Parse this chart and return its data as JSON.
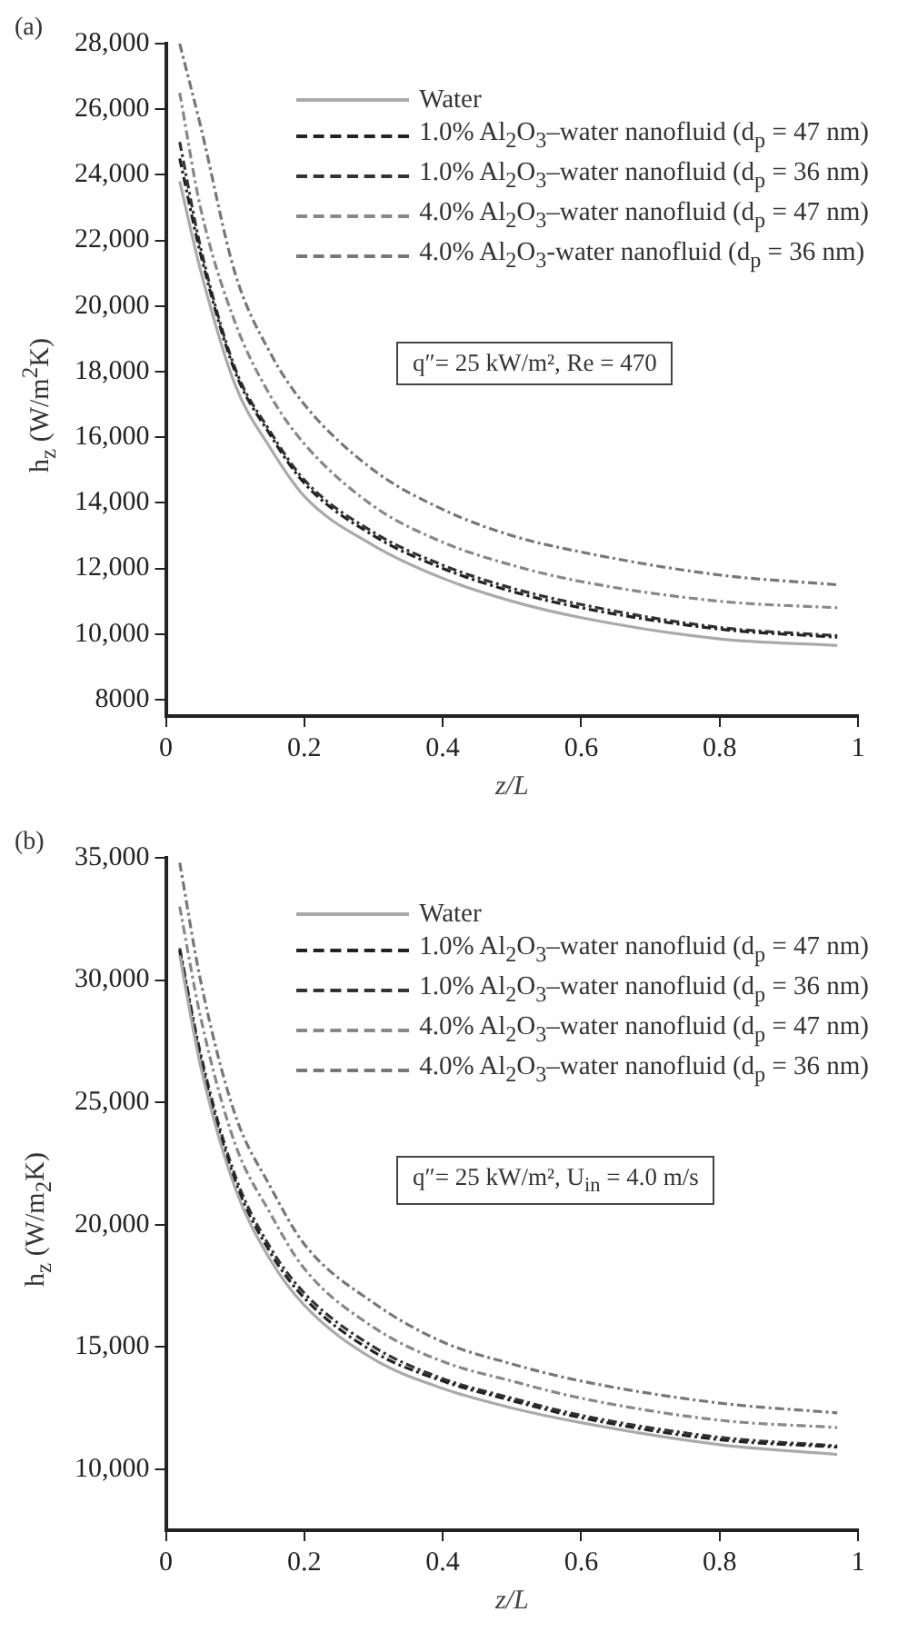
{
  "chart_data": [
    {
      "type": "line",
      "title": "(a)",
      "xlabel": "z/L",
      "ylabel": "h$_{z}$ (W/m$^{2}$K)",
      "x": [
        0.02,
        0.05,
        0.1,
        0.15,
        0.2,
        0.3,
        0.4,
        0.5,
        0.6,
        0.8,
        0.97
      ],
      "xlim": [
        0,
        1
      ],
      "xticks": [
        0,
        0.2,
        0.4,
        0.6,
        0.8,
        1
      ],
      "ylim": [
        7500,
        28000
      ],
      "yticks": [
        8000,
        {
          "value": 10000,
          "label": "10,000"
        },
        {
          "value": 12000,
          "label": "12,000"
        },
        {
          "value": 14000,
          "label": "14,000"
        },
        {
          "value": 16000,
          "label": "16,000"
        },
        {
          "value": 18000,
          "label": "18,000"
        },
        {
          "value": 20000,
          "label": "20,000"
        },
        {
          "value": 22000,
          "label": "22,000"
        },
        {
          "value": 24000,
          "label": "24,000"
        },
        {
          "value": 26000,
          "label": "26,000"
        },
        {
          "value": 28000,
          "label": "28,000"
        }
      ],
      "grid": false,
      "legend": "top right",
      "marker": "none",
      "annotations": [
        "q″= 25 kW/m², Re = 470"
      ],
      "series": [
        {
          "name": "Water",
          "color": "#aaaaaa",
          "line_style": "solid",
          "values": [
            23800,
            21100,
            17600,
            15700,
            14200,
            12700,
            11700,
            11000,
            10500,
            9850,
            9650
          ]
        },
        {
          "name": "1.0% Al$_{2}$O$_{3}$–water nanofluid (d$_{p}$ = 47 nm)",
          "color": "#222222",
          "line_style": "dashed",
          "values": [
            24500,
            21600,
            18000,
            16100,
            14600,
            13000,
            12000,
            11300,
            10800,
            10150,
            9900
          ]
        },
        {
          "name": "1.0% Al$_{2}$O$_{3}$–water nanofluid (d$_{p}$ = 36 nm)",
          "color": "#333333",
          "line_style": "dashed",
          "values": [
            25000,
            21800,
            18100,
            16200,
            14700,
            13100,
            12100,
            11400,
            10900,
            10200,
            9950
          ]
        },
        {
          "name": "4.0% Al$_{2}$O$_{3}$–water nanofluid (d$_{p}$ = 47 nm)",
          "color": "#888888",
          "line_style": "dashed",
          "values": [
            26500,
            23000,
            19500,
            17300,
            15800,
            13900,
            12800,
            12100,
            11600,
            11000,
            10800
          ]
        },
        {
          "name": "4.0% Al$_{2}$O$_{3}$-water nanofluid (d$_{p}$ = 36 nm)",
          "color": "#777777",
          "line_style": "dashed",
          "values": [
            28000,
            25500,
            21000,
            18600,
            17000,
            15000,
            13800,
            13000,
            12500,
            11800,
            11500
          ]
        }
      ]
    },
    {
      "type": "line",
      "title": "(b)",
      "xlabel": "z/L",
      "ylabel": "h$_{z}$ (W/m$_{2}$K)",
      "x": [
        0.02,
        0.05,
        0.1,
        0.15,
        0.2,
        0.3,
        0.4,
        0.5,
        0.6,
        0.8,
        0.97
      ],
      "xlim": [
        0,
        1
      ],
      "xticks": [
        0,
        0.2,
        0.4,
        0.6,
        0.8,
        1
      ],
      "ylim": [
        7500,
        35000
      ],
      "yticks": [
        {
          "value": 10000,
          "label": "10,000"
        },
        {
          "value": 15000,
          "label": "15,000"
        },
        {
          "value": 20000,
          "label": "20,000"
        },
        {
          "value": 25000,
          "label": "25,000"
        },
        {
          "value": 30000,
          "label": "30,000"
        },
        {
          "value": 35000,
          "label": "35,000"
        }
      ],
      "grid": false,
      "legend": "top right",
      "marker": "none",
      "annotations": [
        "q″= 25 kW/m², U$_{in}$ = 4.0 m/s"
      ],
      "series": [
        {
          "name": "Water",
          "color": "#aaaaaa",
          "line_style": "solid",
          "values": [
            31000,
            26500,
            21500,
            18600,
            16700,
            14500,
            13300,
            12500,
            11900,
            11000,
            10600
          ]
        },
        {
          "name": "1.0% Al$_{2}$O$_{3}$–water nanofluid (d$_{p}$ = 47 nm)",
          "color": "#222222",
          "line_style": "dashed",
          "values": [
            31200,
            26800,
            21800,
            18900,
            17000,
            14800,
            13600,
            12800,
            12100,
            11200,
            10900
          ]
        },
        {
          "name": "1.0% Al$_{2}$O$_{3}$–water nanofluid (d$_{p}$ = 36 nm)",
          "color": "#333333",
          "line_style": "dashed",
          "values": [
            31300,
            27000,
            22000,
            19100,
            17200,
            15000,
            13700,
            12900,
            12200,
            11300,
            10950
          ]
        },
        {
          "name": "4.0% Al$_{2}$O$_{3}$–water nanofluid (d$_{p}$ = 47 nm)",
          "color": "#888888",
          "line_style": "dashed",
          "values": [
            33000,
            28500,
            23300,
            20500,
            18200,
            15800,
            14400,
            13600,
            12900,
            12000,
            11700
          ]
        },
        {
          "name": "4.0% Al$_{2}$O$_{3}$–water nanofluid (d$_{p}$ = 36 nm)",
          "color": "#777777",
          "line_style": "dashed",
          "values": [
            34800,
            30000,
            24500,
            21600,
            19200,
            16800,
            15200,
            14300,
            13600,
            12700,
            12300
          ]
        }
      ]
    }
  ]
}
